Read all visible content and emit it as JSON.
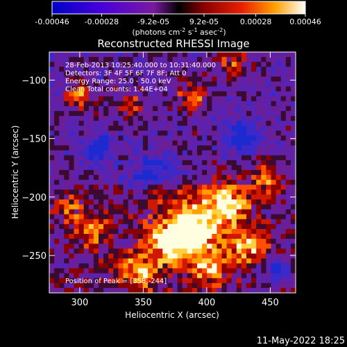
{
  "chart_data": {
    "type": "heatmap",
    "title": "Reconstructed RHESSI Image",
    "xlabel": "Heliocentric X (arcsec)",
    "ylabel": "Heliocentric Y (arcsec)",
    "xlim": [
      276,
      470
    ],
    "ylim": [
      -282,
      -76
    ],
    "x_ticks": [
      300,
      350,
      400,
      450
    ],
    "y_ticks": [
      -100,
      -150,
      -200,
      -250
    ],
    "colorbar": {
      "range": [
        -0.00046,
        0.00046
      ],
      "ticks": [
        "-0.00046",
        "-0.00028",
        "-9.2e-05",
        "9.2e-05",
        "0.00028",
        "0.00046"
      ],
      "tick_values": [
        -0.00046,
        -0.00028,
        -9.2e-05,
        9.2e-05,
        0.00028,
        0.00046
      ],
      "units": "(photons cm",
      "units_sup1": "-2",
      "units_mid": " s",
      "units_sup2": "-1",
      "units_mid2": " asec",
      "units_sup3": "-2",
      "units_end": ")"
    },
    "annotations": [
      "28-Feb-2013 10:25:40.000 to 10:31:40.000",
      "Detectors: 3F 4F 5F 6F 7F 8F; Att 0",
      "Energy Range: 25.0 - 50.0 keV",
      "Clean     Total counts: 1.44E+04"
    ],
    "peak_label": "Position of Peak = [358,-244]",
    "peak_position": [
      358,
      -244
    ],
    "grid": false
  },
  "footer": {
    "timestamp": "11-May-2022 18:25"
  }
}
